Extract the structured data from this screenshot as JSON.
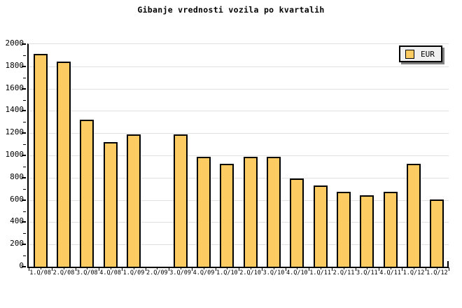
{
  "title": "Gibanje vrednosti vozila po kvartalih",
  "legend": {
    "label": "EUR",
    "swatch_color": "#fccb62"
  },
  "colors": {
    "bar_fill": "#fccb62",
    "bar_border": "#000000",
    "gridline": "#e0e0e0",
    "axis": "#000000",
    "legend_bg": "#f0f0f0",
    "legend_shadow": "#808080",
    "background": "#ffffff"
  },
  "chart_data": {
    "type": "bar",
    "title": "Gibanje vrednosti vozila po kvartalih",
    "categories": [
      "1.Q/08",
      "2.Q/08",
      "3.Q/08",
      "4.Q/08",
      "1.Q/09",
      "2.Q/09",
      "3.Q/09",
      "4.Q/09",
      "1.Q/10",
      "2.Q/10",
      "3.Q/10",
      "4.Q/10",
      "1.Q/11",
      "2.Q/11",
      "3.Q/11",
      "4.Q/11",
      "1.Q/12",
      "1.Q/12"
    ],
    "values": [
      1915,
      1845,
      1320,
      1120,
      1190,
      0,
      1190,
      990,
      925,
      990,
      990,
      795,
      730,
      670,
      640,
      670,
      925,
      605
    ],
    "series_name": "EUR",
    "xlabel": "",
    "ylabel": "",
    "ylim": [
      0,
      2000
    ],
    "ytick_step": 200,
    "ytick_minor_step": 100,
    "grid": "horizontal",
    "legend_position": "top-right",
    "note": "no bar drawn for 2.Q/09 (value 0)"
  }
}
